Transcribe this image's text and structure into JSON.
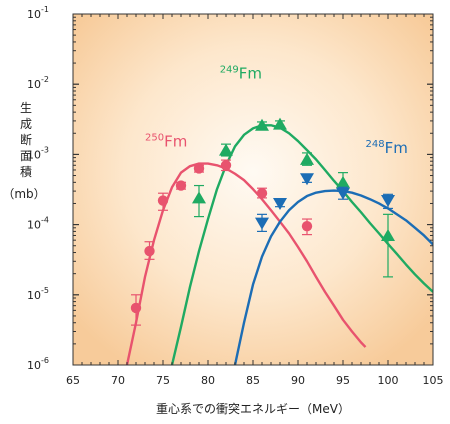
{
  "chart_data": {
    "type": "scatter",
    "xlabel": "重心系での衝突エネルギー（MeV）",
    "ylabel": "生成断面積（mb）",
    "ylabel_chars": [
      "生",
      "成",
      "断",
      "面",
      "積"
    ],
    "ylabel_unit": "（mb）",
    "xlim": [
      65,
      105
    ],
    "ylim": [
      1e-06,
      0.1
    ],
    "yscale": "log",
    "x_ticks": [
      "65",
      "70",
      "75",
      "80",
      "85",
      "90",
      "95",
      "100",
      "105"
    ],
    "y_ticks": [
      {
        "base": "10",
        "exp": "-6"
      },
      {
        "base": "10",
        "exp": "-5"
      },
      {
        "base": "10",
        "exp": "-4"
      },
      {
        "base": "10",
        "exp": "-3"
      },
      {
        "base": "10",
        "exp": "-2"
      },
      {
        "base": "10",
        "exp": "-1"
      }
    ],
    "series": [
      {
        "name_mass": "250",
        "name_elem": "Fm",
        "color": "#e8536e",
        "marker": "circle",
        "label_at": [
          73.0,
          0.0013
        ],
        "points": [
          {
            "x": 72.0,
            "y": 6.5e-06,
            "lo": 3.7e-06,
            "hi": 1e-05
          },
          {
            "x": 73.5,
            "y": 4.2e-05,
            "lo": 3.2e-05,
            "hi": 5.7e-05
          },
          {
            "x": 75.0,
            "y": 0.00022,
            "lo": 0.00016,
            "hi": 0.00028
          },
          {
            "x": 77.0,
            "y": 0.00036,
            "lo": 0.00032,
            "hi": 0.0004
          },
          {
            "x": 79.0,
            "y": 0.00063,
            "lo": 0.00056,
            "hi": 0.0007
          },
          {
            "x": 82.0,
            "y": 0.0007,
            "lo": 0.00059,
            "hi": 0.00083
          },
          {
            "x": 86.0,
            "y": 0.00028,
            "lo": 0.00024,
            "hi": 0.00033
          },
          {
            "x": 91.0,
            "y": 9.5e-05,
            "lo": 7.2e-05,
            "hi": 0.00012
          }
        ],
        "curve": [
          [
            71.0,
            1e-06
          ],
          [
            72.0,
            4e-06
          ],
          [
            73.0,
            1.8e-05
          ],
          [
            74.0,
            6e-05
          ],
          [
            75.0,
            0.00016
          ],
          [
            76.0,
            0.00034
          ],
          [
            77.0,
            0.00055
          ],
          [
            78.0,
            0.00068
          ],
          [
            79.0,
            0.00074
          ],
          [
            80.0,
            0.00074
          ],
          [
            81.0,
            0.0007
          ],
          [
            82.0,
            0.00063
          ],
          [
            83.0,
            0.00053
          ],
          [
            84.0,
            0.00043
          ],
          [
            85.0,
            0.00032
          ],
          [
            86.0,
            0.00023
          ],
          [
            87.0,
            0.00016
          ],
          [
            88.0,
            0.00011
          ],
          [
            89.0,
            7.5e-05
          ],
          [
            90.0,
            4.8e-05
          ],
          [
            91.0,
            3e-05
          ],
          [
            92.0,
            1.8e-05
          ],
          [
            93.0,
            1.1e-05
          ],
          [
            94.0,
            7e-06
          ],
          [
            95.0,
            4.4e-06
          ],
          [
            96.0,
            3e-06
          ],
          [
            97.0,
            2.1e-06
          ],
          [
            97.5,
            1.8e-06
          ]
        ]
      },
      {
        "name_mass": "249",
        "name_elem": "Fm",
        "color": "#1faa62",
        "marker": "triangle-up",
        "label_at": [
          81.3,
          0.012
        ],
        "points": [
          {
            "x": 79.0,
            "y": 0.00024,
            "lo": 0.00013,
            "hi": 0.00036
          },
          {
            "x": 82.0,
            "y": 0.00115,
            "lo": 0.00095,
            "hi": 0.0014
          },
          {
            "x": 86.0,
            "y": 0.0026,
            "lo": 0.0023,
            "hi": 0.0029
          },
          {
            "x": 88.0,
            "y": 0.0027,
            "lo": 0.0024,
            "hi": 0.003
          },
          {
            "x": 91.0,
            "y": 0.00085,
            "lo": 0.0007,
            "hi": 0.00105
          },
          {
            "x": 95.0,
            "y": 0.0004,
            "lo": 0.0003,
            "hi": 0.00055
          },
          {
            "x": 100.0,
            "y": 7e-05,
            "lo": 1.8e-05,
            "hi": 0.00014
          }
        ],
        "curve": [
          [
            76.0,
            1e-06
          ],
          [
            77.0,
            3.5e-06
          ],
          [
            78.0,
            1.3e-05
          ],
          [
            79.0,
            4.2e-05
          ],
          [
            80.0,
            0.00012
          ],
          [
            81.0,
            0.00032
          ],
          [
            82.0,
            0.0007
          ],
          [
            83.0,
            0.0013
          ],
          [
            84.0,
            0.0019
          ],
          [
            85.0,
            0.00235
          ],
          [
            86.0,
            0.0026
          ],
          [
            87.0,
            0.0026
          ],
          [
            88.0,
            0.0024
          ],
          [
            89.0,
            0.002
          ],
          [
            90.0,
            0.00155
          ],
          [
            91.0,
            0.00115
          ],
          [
            92.0,
            0.00085
          ],
          [
            93.0,
            0.0006
          ],
          [
            94.0,
            0.00042
          ],
          [
            95.0,
            0.0003
          ],
          [
            96.0,
            0.00021
          ],
          [
            97.0,
            0.00015
          ],
          [
            98.0,
            0.000105
          ],
          [
            99.0,
            7.5e-05
          ],
          [
            100.0,
            5.3e-05
          ],
          [
            101.0,
            3.8e-05
          ],
          [
            102.0,
            2.7e-05
          ],
          [
            103.0,
            1.95e-05
          ],
          [
            104.0,
            1.45e-05
          ],
          [
            105.0,
            1.1e-05
          ]
        ]
      },
      {
        "name_mass": "248",
        "name_elem": "Fm",
        "color": "#1c6db5",
        "marker": "triangle-down",
        "label_at": [
          97.5,
          0.00105
        ],
        "points": [
          {
            "x": 86.0,
            "y": 0.000105,
            "lo": 8e-05,
            "hi": 0.00014
          },
          {
            "x": 88.0,
            "y": 0.0002,
            "lo": 0.00018,
            "hi": 0.00022
          },
          {
            "x": 91.0,
            "y": 0.00045,
            "lo": 0.0004,
            "hi": 0.0005
          },
          {
            "x": 95.0,
            "y": 0.00028,
            "lo": 0.00023,
            "hi": 0.00034
          },
          {
            "x": 100.0,
            "y": 0.00022,
            "lo": 0.00017,
            "hi": 0.00027
          }
        ],
        "curve": [
          [
            83.0,
            1e-06
          ],
          [
            84.0,
            4e-06
          ],
          [
            85.0,
            1.4e-05
          ],
          [
            86.0,
            3.5e-05
          ],
          [
            87.0,
            6.8e-05
          ],
          [
            88.0,
            0.00011
          ],
          [
            89.0,
            0.00016
          ],
          [
            90.0,
            0.00021
          ],
          [
            91.0,
            0.000255
          ],
          [
            92.0,
            0.000285
          ],
          [
            93.0,
            0.0003
          ],
          [
            94.0,
            0.000305
          ],
          [
            95.0,
            0.0003
          ],
          [
            96.0,
            0.000285
          ],
          [
            97.0,
            0.00026
          ],
          [
            98.0,
            0.00023
          ],
          [
            99.0,
            0.0002
          ],
          [
            100.0,
            0.00017
          ],
          [
            101.0,
            0.00014
          ],
          [
            102.0,
            0.000115
          ],
          [
            103.0,
            9e-05
          ],
          [
            104.0,
            7e-05
          ],
          [
            105.0,
            5.2e-05
          ]
        ]
      }
    ]
  }
}
